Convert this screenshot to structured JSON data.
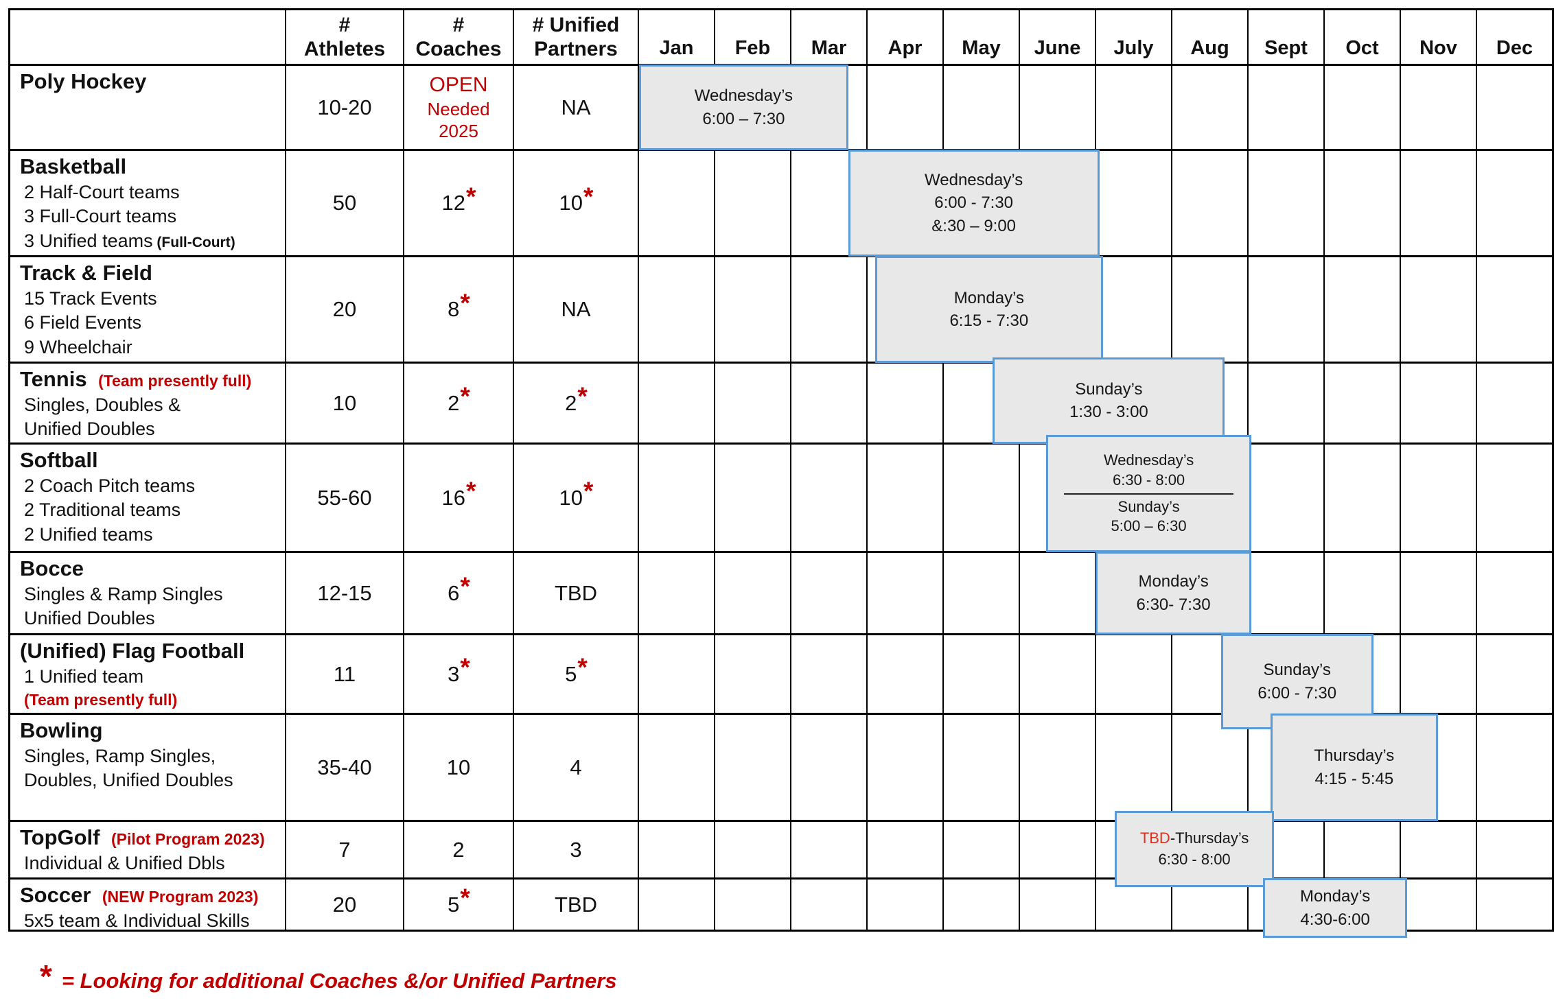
{
  "palette": {
    "red": "#C00000",
    "block_fill": "#E9E8E8",
    "block_border": "#5B9BD5",
    "grid": "#000000"
  },
  "header": {
    "sport": "",
    "athletes": "#\nAthletes",
    "coaches": "#\nCoaches",
    "unified": "# Unified\nPartners"
  },
  "months": [
    "Jan",
    "Feb",
    "Mar",
    "Apr",
    "May",
    "June",
    "July",
    "Aug",
    "Sept",
    "Oct",
    "Nov",
    "Dec"
  ],
  "rows": [
    {
      "name": "Poly Hockey",
      "note": null,
      "details": [],
      "athletes": {
        "text": "10-20"
      },
      "coaches": {
        "lines": [
          "OPEN",
          "Needed",
          "2025"
        ],
        "red": true
      },
      "unified": {
        "text": "NA"
      },
      "blocks": [
        {
          "start": 0,
          "end": 2.75,
          "sections": [
            {
              "lines": [
                "Wednesday’s",
                "6:00 – 7:30"
              ]
            }
          ]
        }
      ]
    },
    {
      "name": "Basketball",
      "note": null,
      "details": [
        {
          "text": "2 Half-Court teams"
        },
        {
          "text": "3 Full-Court teams"
        },
        {
          "text": "3 Unified teams",
          "suffix": "(Full-Court)"
        }
      ],
      "athletes": {
        "text": "50"
      },
      "coaches": {
        "text": "12",
        "star": true
      },
      "unified": {
        "text": "10",
        "star": true
      },
      "blocks": [
        {
          "start": 2.75,
          "end": 6.05,
          "sections": [
            {
              "lines": [
                "Wednesday’s",
                "6:00 - 7:30",
                "&:30 – 9:00"
              ]
            }
          ]
        }
      ]
    },
    {
      "name": "Track & Field",
      "note": null,
      "details": [
        {
          "text": "15 Track Events"
        },
        {
          "text": "6 Field Events"
        },
        {
          "text": "9 Wheelchair"
        }
      ],
      "athletes": {
        "text": "20"
      },
      "coaches": {
        "text": "8",
        "star": true
      },
      "unified": {
        "text": "NA"
      },
      "blocks": [
        {
          "start": 3.1,
          "end": 6.1,
          "sections": [
            {
              "lines": [
                "Monday’s",
                "6:15 - 7:30"
              ]
            }
          ]
        }
      ]
    },
    {
      "name": "Tennis",
      "note": "(Team presently full)",
      "details": [
        {
          "text": "Singles, Doubles &"
        },
        {
          "text": "Unified Doubles"
        }
      ],
      "athletes": {
        "text": "10"
      },
      "coaches": {
        "text": "2",
        "star": true
      },
      "unified": {
        "text": "2",
        "star": true
      },
      "blocks": [
        {
          "start": 4.65,
          "end": 7.7,
          "sections": [
            {
              "lines": [
                "Sunday’s",
                "1:30 - 3:00"
              ]
            }
          ]
        }
      ]
    },
    {
      "name": "Softball",
      "note": null,
      "details": [
        {
          "text": "2 Coach Pitch teams"
        },
        {
          "text": "2 Traditional teams"
        },
        {
          "text": "2 Unified teams"
        }
      ],
      "athletes": {
        "text": "55-60"
      },
      "coaches": {
        "text": "16",
        "star": true
      },
      "unified": {
        "text": "10",
        "star": true
      },
      "blocks": [
        {
          "start": 5.35,
          "end": 8.05,
          "sections": [
            {
              "lines": [
                "Wednesday’s",
                "6:30 - 8:00"
              ]
            },
            {
              "lines": [
                "Sunday’s",
                "5:00 – 6:30"
              ]
            }
          ]
        }
      ]
    },
    {
      "name": "Bocce",
      "note": null,
      "details": [
        {
          "text": "Singles & Ramp Singles"
        },
        {
          "text": "Unified Doubles"
        }
      ],
      "athletes": {
        "text": "12-15"
      },
      "coaches": {
        "text": "6",
        "star": true
      },
      "unified": {
        "text": "TBD"
      },
      "blocks": [
        {
          "start": 6.0,
          "end": 8.05,
          "sections": [
            {
              "lines": [
                "Monday’s",
                "6:30- 7:30"
              ]
            }
          ]
        }
      ]
    },
    {
      "name": "(Unified) Flag Football",
      "note": null,
      "details": [
        {
          "text": "1 Unified team"
        },
        {
          "text": "(Team presently full)",
          "red": true
        }
      ],
      "athletes": {
        "text": "11"
      },
      "coaches": {
        "text": "3",
        "star": true
      },
      "unified": {
        "text": "5",
        "star": true
      },
      "blocks": [
        {
          "start": 7.65,
          "end": 9.65,
          "sections": [
            {
              "lines": [
                "Sunday’s",
                "6:00 - 7:30"
              ]
            }
          ]
        }
      ]
    },
    {
      "name": "Bowling",
      "note": null,
      "details": [
        {
          "text": "Singles, Ramp Singles,"
        },
        {
          "text": "Doubles, Unified Doubles"
        }
      ],
      "athletes": {
        "text": "35-40"
      },
      "coaches": {
        "text": "10"
      },
      "unified": {
        "text": "4"
      },
      "blocks": [
        {
          "start": 8.3,
          "end": 10.5,
          "sections": [
            {
              "lines": [
                "Thursday’s",
                "4:15 - 5:45"
              ]
            }
          ]
        }
      ]
    },
    {
      "name": "TopGolf",
      "note": "(Pilot Program 2023)",
      "details": [
        {
          "text": "Individual & Unified Dbls"
        }
      ],
      "athletes": {
        "text": "7"
      },
      "coaches": {
        "text": "2"
      },
      "unified": {
        "text": "3"
      },
      "blocks": [
        {
          "start": 6.25,
          "end": 8.35,
          "sections": [
            {
              "lines": [
                [
                  {
                    "text": "TBD",
                    "red": true
                  },
                  {
                    "text": "-Thursday’s",
                    "red": false
                  }
                ],
                "6:30 - 8:00"
              ]
            }
          ]
        }
      ]
    },
    {
      "name": "Soccer",
      "note": "(NEW Program 2023)",
      "details": [
        {
          "text": "5x5 team & Individual Skills"
        }
      ],
      "athletes": {
        "text": "20"
      },
      "coaches": {
        "text": "5",
        "star": true
      },
      "unified": {
        "text": "TBD"
      },
      "blocks": [
        {
          "start": 8.2,
          "end": 10.1,
          "sections": [
            {
              "lines": [
                "Monday’s",
                "4:30-6:00"
              ]
            }
          ]
        }
      ]
    }
  ],
  "footnote": {
    "symbol": "*",
    "text": "= Looking for additional Coaches &/or Unified Partners"
  }
}
